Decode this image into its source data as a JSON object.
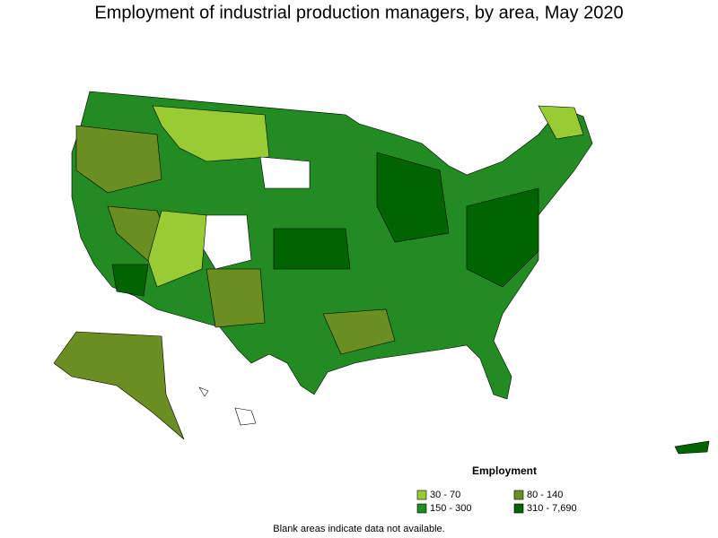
{
  "header": {
    "title": "Employment of industrial production managers, by area, May 2020"
  },
  "legend": {
    "title": "Employment",
    "items": [
      {
        "label": "30 - 70",
        "color": "#99cc33"
      },
      {
        "label": "80 - 140",
        "color": "#6b8e23"
      },
      {
        "label": "150 - 300",
        "color": "#228b22"
      },
      {
        "label": "310 - 7,690",
        "color": "#006400"
      }
    ]
  },
  "note": "Blank areas indicate data not available."
}
